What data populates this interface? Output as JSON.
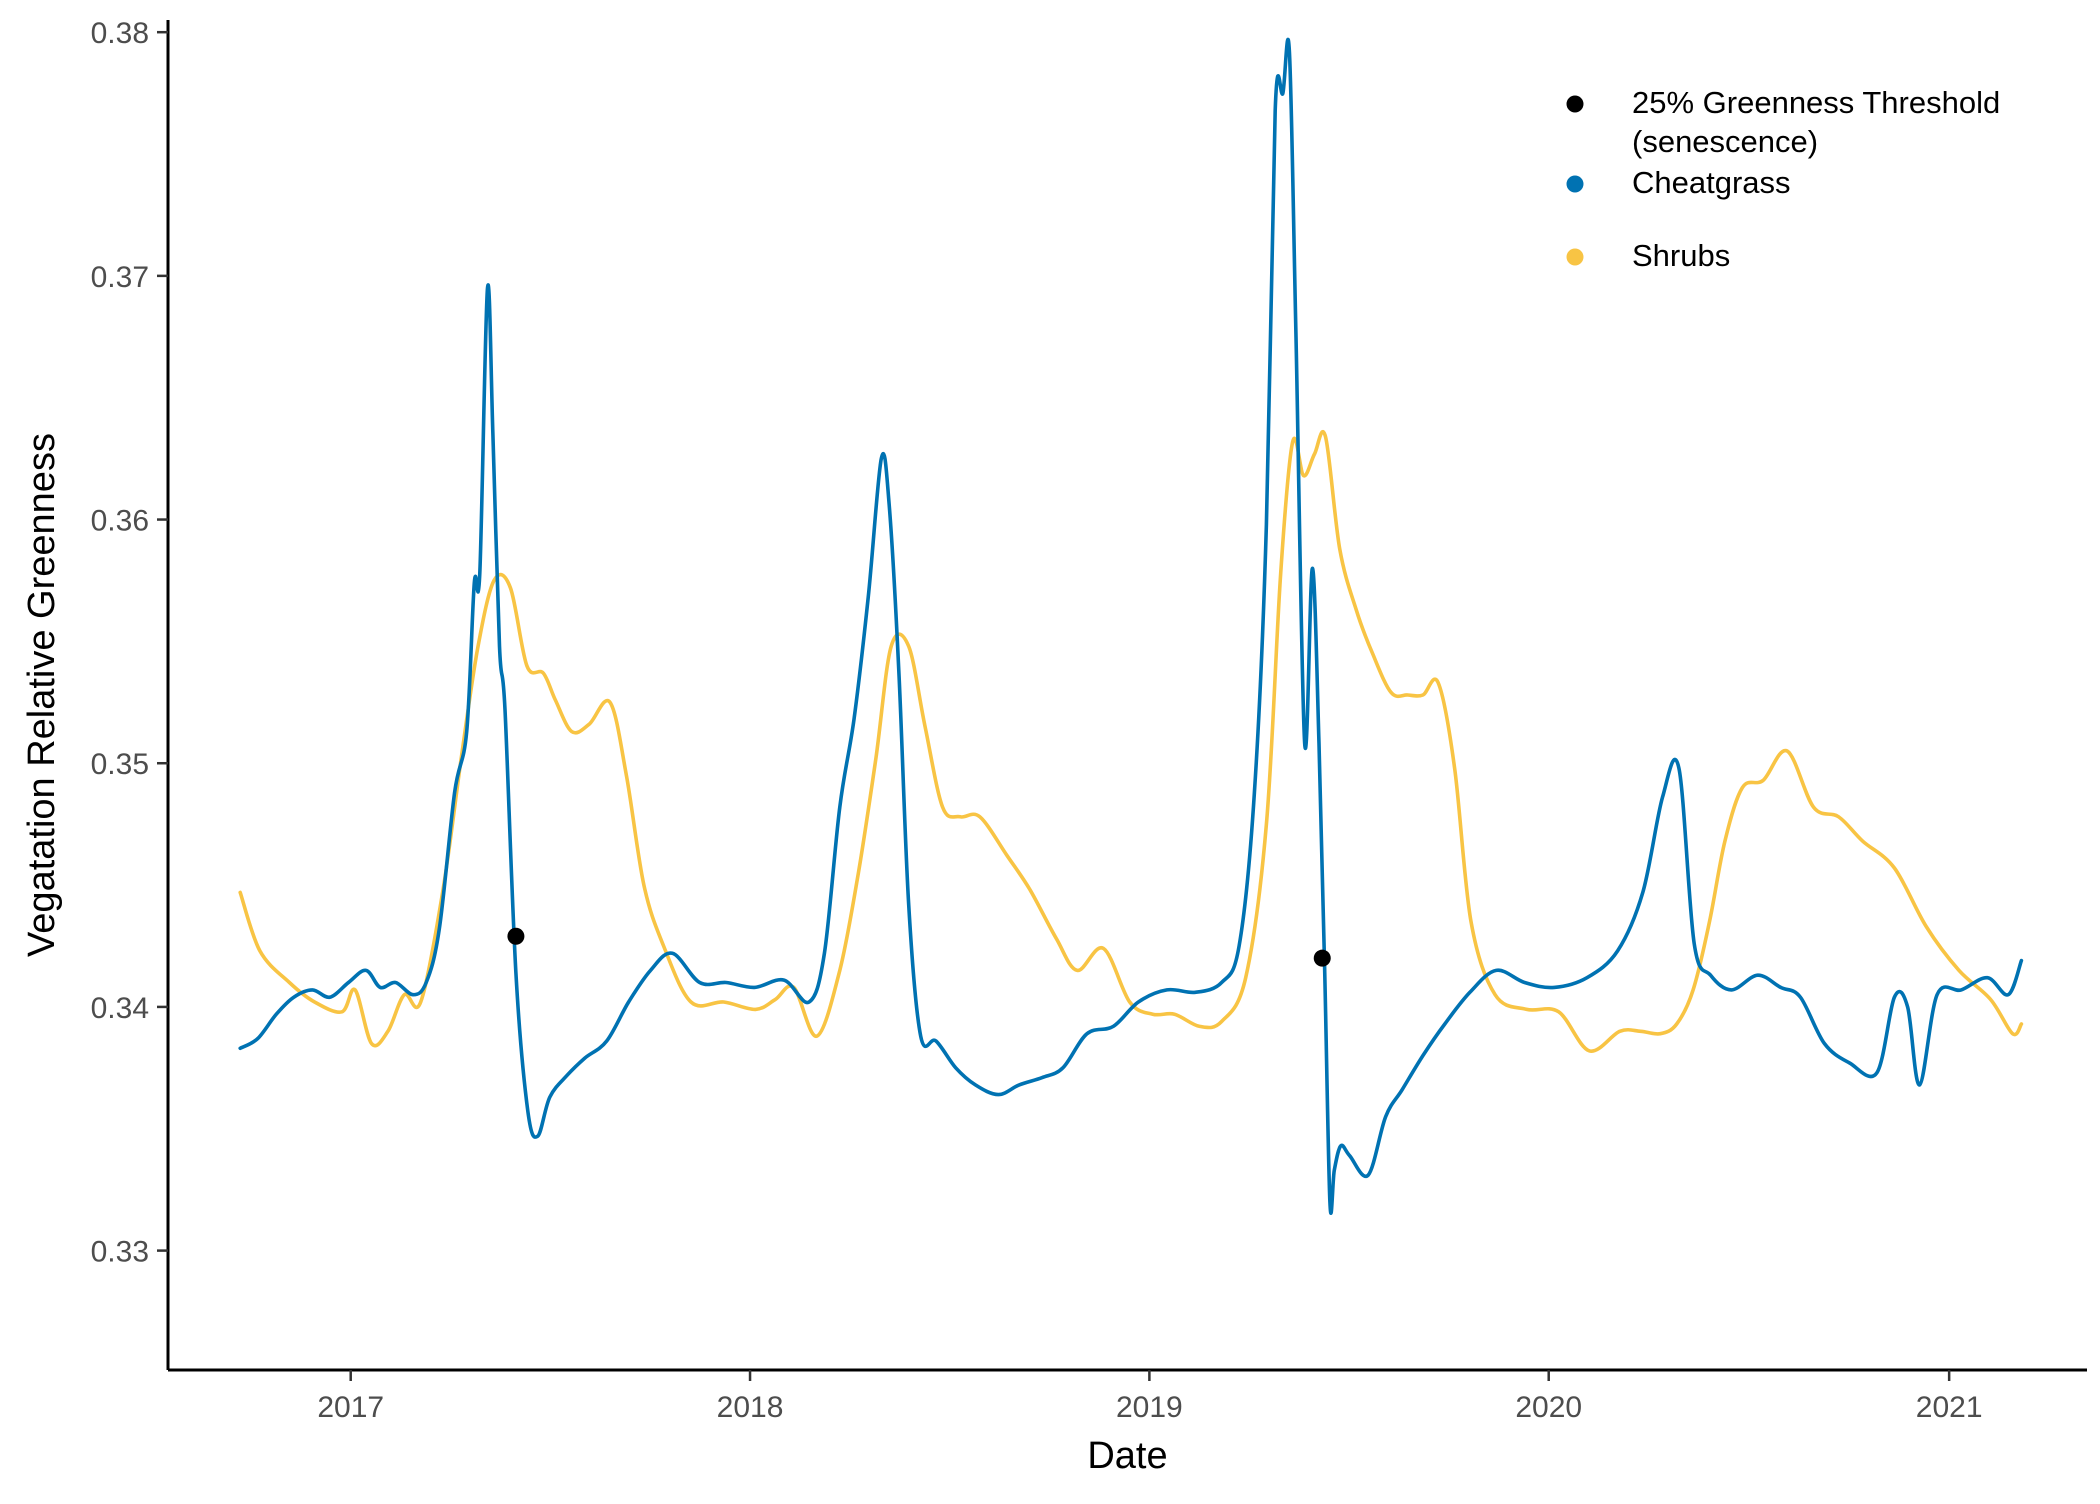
{
  "chart_data": {
    "type": "line",
    "xlabel": "Date",
    "ylabel": "Vegatation Relative Greenness",
    "xlim": [
      "2016-07-18",
      "2021-05-07"
    ],
    "ylim": [
      0.3251,
      0.3805
    ],
    "x_ticks": [
      {
        "date": "2017-01-01",
        "label": "2017"
      },
      {
        "date": "2018-01-01",
        "label": "2018"
      },
      {
        "date": "2019-01-01",
        "label": "2019"
      },
      {
        "date": "2020-01-01",
        "label": "2020"
      },
      {
        "date": "2021-01-01",
        "label": "2021"
      }
    ],
    "y_ticks": [
      {
        "value": 0.33,
        "label": "0.33"
      },
      {
        "value": 0.34,
        "label": "0.34"
      },
      {
        "value": 0.35,
        "label": "0.35"
      },
      {
        "value": 0.36,
        "label": "0.36"
      },
      {
        "value": 0.37,
        "label": "0.37"
      },
      {
        "value": 0.38,
        "label": "0.38"
      }
    ],
    "grid": false,
    "legend": {
      "position": "top-right",
      "entries": [
        {
          "label_lines": [
            "25% Greenness Threshold",
            "(senescence)"
          ],
          "color": "#000000",
          "marker": "point"
        },
        {
          "label_lines": [
            "Cheatgrass"
          ],
          "color": "#0072B2",
          "marker": "point"
        },
        {
          "label_lines": [
            "Shrubs"
          ],
          "color": "#F8C444",
          "marker": "point"
        }
      ]
    },
    "points": {
      "name": "25% Greenness Threshold (senescence)",
      "color": "#000000",
      "x": [
        "2017-06-01",
        "2019-06-08"
      ],
      "y": [
        0.3429,
        0.342
      ]
    },
    "series": [
      {
        "name": "Shrubs",
        "color": "#F8C444",
        "x": [
          "2016-09-22",
          "2016-10-10",
          "2016-11-06",
          "2016-11-29",
          "2016-12-24",
          "2017-01-05",
          "2017-01-20",
          "2017-02-04",
          "2017-02-19",
          "2017-03-06",
          "2017-03-26",
          "2017-04-12",
          "2017-04-27",
          "2017-05-12",
          "2017-05-27",
          "2017-06-11",
          "2017-06-26",
          "2017-07-07",
          "2017-07-22",
          "2017-08-07",
          "2017-08-26",
          "2017-09-10",
          "2017-09-26",
          "2017-10-14",
          "2017-11-08",
          "2017-12-08",
          "2018-01-06",
          "2018-01-24",
          "2018-02-10",
          "2018-03-03",
          "2018-03-24",
          "2018-04-10",
          "2018-04-26",
          "2018-05-10",
          "2018-05-26",
          "2018-06-10",
          "2018-06-26",
          "2018-07-12",
          "2018-07-30",
          "2018-08-24",
          "2018-09-14",
          "2018-10-08",
          "2018-10-27",
          "2018-11-20",
          "2018-12-14",
          "2019-01-04",
          "2019-01-24",
          "2019-02-16",
          "2019-03-08",
          "2019-03-30",
          "2019-04-18",
          "2019-05-01",
          "2019-05-12",
          "2019-05-22",
          "2019-06-01",
          "2019-06-11",
          "2019-06-24",
          "2019-07-09",
          "2019-07-24",
          "2019-08-10",
          "2019-08-25",
          "2019-09-08",
          "2019-09-22",
          "2019-10-07",
          "2019-10-22",
          "2019-11-13",
          "2019-12-12",
          "2020-01-10",
          "2020-02-07",
          "2020-03-06",
          "2020-03-25",
          "2020-04-12",
          "2020-04-27",
          "2020-05-12",
          "2020-05-27",
          "2020-06-10",
          "2020-06-26",
          "2020-07-15",
          "2020-08-06",
          "2020-08-30",
          "2020-09-22",
          "2020-10-14",
          "2020-11-12",
          "2020-12-11",
          "2021-01-10",
          "2021-02-08",
          "2021-02-28",
          "2021-03-08"
        ],
        "y": [
          0.3447,
          0.3423,
          0.341,
          0.3402,
          0.3398,
          0.3407,
          0.3385,
          0.339,
          0.3405,
          0.3402,
          0.3447,
          0.3502,
          0.3547,
          0.3575,
          0.3572,
          0.354,
          0.3537,
          0.3526,
          0.3513,
          0.3516,
          0.3525,
          0.3495,
          0.345,
          0.3425,
          0.3402,
          0.3402,
          0.3399,
          0.3403,
          0.3408,
          0.3388,
          0.3415,
          0.3455,
          0.3502,
          0.3548,
          0.3548,
          0.3515,
          0.3482,
          0.3478,
          0.3478,
          0.3462,
          0.3448,
          0.3428,
          0.3415,
          0.3424,
          0.3402,
          0.3397,
          0.3397,
          0.3392,
          0.3394,
          0.3412,
          0.3475,
          0.3578,
          0.3632,
          0.3618,
          0.3627,
          0.3634,
          0.3588,
          0.3563,
          0.3545,
          0.3529,
          0.3528,
          0.3528,
          0.3533,
          0.3498,
          0.3435,
          0.3405,
          0.3399,
          0.3398,
          0.3382,
          0.339,
          0.339,
          0.3389,
          0.3393,
          0.3407,
          0.3435,
          0.3468,
          0.349,
          0.3493,
          0.3505,
          0.3482,
          0.3478,
          0.3468,
          0.3457,
          0.3433,
          0.3415,
          0.3403,
          0.3389,
          0.3393
        ]
      },
      {
        "name": "Cheatgrass",
        "color": "#0072B2",
        "x": [
          "2016-09-22",
          "2016-10-08",
          "2016-10-25",
          "2016-11-10",
          "2016-11-27",
          "2016-12-13",
          "2016-12-30",
          "2017-01-15",
          "2017-01-28",
          "2017-02-11",
          "2017-02-27",
          "2017-03-11",
          "2017-03-23",
          "2017-04-06",
          "2017-04-17",
          "2017-04-24",
          "2017-04-29",
          "2017-05-06",
          "2017-05-11",
          "2017-05-17",
          "2017-05-22",
          "2017-06-01",
          "2017-06-12",
          "2017-06-21",
          "2017-07-02",
          "2017-07-18",
          "2017-08-03",
          "2017-08-23",
          "2017-09-12",
          "2017-10-02",
          "2017-10-22",
          "2017-11-16",
          "2017-12-10",
          "2018-01-05",
          "2018-02-01",
          "2018-02-24",
          "2018-03-10",
          "2018-03-24",
          "2018-04-06",
          "2018-04-19",
          "2018-05-01",
          "2018-05-08",
          "2018-05-17",
          "2018-05-26",
          "2018-06-06",
          "2018-06-20",
          "2018-07-08",
          "2018-07-26",
          "2018-08-16",
          "2018-09-04",
          "2018-09-25",
          "2018-10-14",
          "2018-11-05",
          "2018-11-29",
          "2018-12-22",
          "2019-01-17",
          "2019-02-12",
          "2019-03-08",
          "2019-03-24",
          "2019-04-07",
          "2019-04-18",
          "2019-04-26",
          "2019-05-03",
          "2019-05-09",
          "2019-05-15",
          "2019-05-23",
          "2019-05-30",
          "2019-06-05",
          "2019-06-10",
          "2019-06-15",
          "2019-06-19",
          "2019-06-25",
          "2019-07-03",
          "2019-07-20",
          "2019-08-05",
          "2019-08-20",
          "2019-09-08",
          "2019-09-28",
          "2019-10-21",
          "2019-11-14",
          "2019-12-10",
          "2020-01-06",
          "2020-02-05",
          "2020-03-04",
          "2020-03-27",
          "2020-04-14",
          "2020-04-29",
          "2020-05-13",
          "2020-05-28",
          "2020-06-16",
          "2020-07-10",
          "2020-07-31",
          "2020-08-18",
          "2020-09-09",
          "2020-10-02",
          "2020-10-27",
          "2020-11-12",
          "2020-11-24",
          "2020-12-05",
          "2020-12-21",
          "2021-01-12",
          "2021-02-05",
          "2021-02-24",
          "2021-03-08"
        ],
        "y": [
          0.3383,
          0.3387,
          0.3397,
          0.3404,
          0.3407,
          0.3404,
          0.341,
          0.3415,
          0.3408,
          0.341,
          0.3405,
          0.341,
          0.3432,
          0.3488,
          0.3513,
          0.3574,
          0.3578,
          0.3695,
          0.3635,
          0.3548,
          0.3522,
          0.3414,
          0.3357,
          0.3347,
          0.3363,
          0.3372,
          0.3379,
          0.3386,
          0.3402,
          0.3415,
          0.3422,
          0.341,
          0.341,
          0.3408,
          0.3411,
          0.3402,
          0.3422,
          0.3482,
          0.3518,
          0.3568,
          0.3625,
          0.3607,
          0.3538,
          0.3442,
          0.3388,
          0.3386,
          0.3375,
          0.3368,
          0.3364,
          0.3368,
          0.3371,
          0.3375,
          0.3389,
          0.3392,
          0.3402,
          0.3407,
          0.3406,
          0.341,
          0.3425,
          0.3488,
          0.3598,
          0.3768,
          0.3775,
          0.3792,
          0.3675,
          0.3508,
          0.358,
          0.3508,
          0.342,
          0.332,
          0.3333,
          0.3343,
          0.3339,
          0.3331,
          0.3355,
          0.3366,
          0.338,
          0.3393,
          0.3406,
          0.3415,
          0.341,
          0.3408,
          0.3412,
          0.3423,
          0.3447,
          0.3486,
          0.3498,
          0.3426,
          0.3413,
          0.3407,
          0.3413,
          0.3408,
          0.3404,
          0.3385,
          0.3377,
          0.3373,
          0.3404,
          0.34,
          0.3368,
          0.3405,
          0.3407,
          0.3412,
          0.3405,
          0.3419
        ]
      }
    ]
  }
}
